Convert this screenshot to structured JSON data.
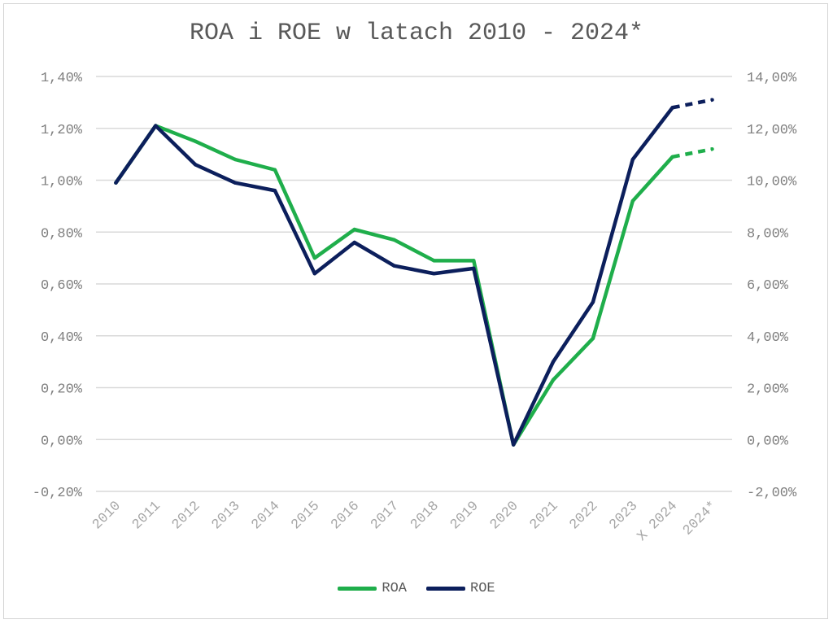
{
  "chart_data": {
    "type": "line",
    "title": "ROA i ROE w latach 2010 - 2024*",
    "categories": [
      "2010",
      "2011",
      "2012",
      "2013",
      "2014",
      "2015",
      "2016",
      "2017",
      "2018",
      "2019",
      "2020",
      "2021",
      "2022",
      "2023",
      "X 2024",
      "2024*"
    ],
    "y_left": {
      "range": [
        -0.2,
        1.4
      ],
      "step": 0.2,
      "tick_labels": [
        "-0,20%",
        "0,00%",
        "0,20%",
        "0,40%",
        "0,60%",
        "0,80%",
        "1,00%",
        "1,20%",
        "1,40%"
      ]
    },
    "y_right": {
      "range": [
        -2.0,
        14.0
      ],
      "step": 2.0,
      "tick_labels": [
        "-2,00%",
        "0,00%",
        "2,00%",
        "4,00%",
        "6,00%",
        "8,00%",
        "10,00%",
        "12,00%",
        "14,00%"
      ]
    },
    "series": [
      {
        "name": "ROA",
        "axis": "left",
        "color": "#1fae4b",
        "values": [
          0.99,
          1.21,
          1.15,
          1.08,
          1.04,
          0.7,
          0.81,
          0.77,
          0.69,
          0.69,
          -0.02,
          0.23,
          0.39,
          0.92,
          1.09,
          1.12
        ],
        "dashed_from_index": 14
      },
      {
        "name": "ROE",
        "axis": "right",
        "color": "#0c1f5c",
        "values": [
          9.9,
          12.1,
          10.6,
          9.9,
          9.6,
          6.4,
          7.6,
          6.7,
          6.4,
          6.6,
          -0.2,
          3.0,
          5.3,
          10.8,
          12.8,
          13.1
        ],
        "dashed_from_index": 14
      }
    ],
    "legend": [
      "ROA",
      "ROE"
    ],
    "legend_position": "bottom",
    "grid": true
  }
}
